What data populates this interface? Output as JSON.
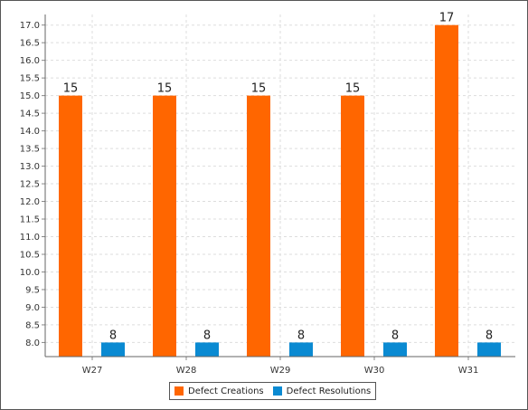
{
  "chart_data": {
    "type": "bar",
    "title": "",
    "xlabel": "",
    "ylabel": "",
    "categories": [
      "W27",
      "W28",
      "W29",
      "W30",
      "W31"
    ],
    "series": [
      {
        "name": "Defect Creations",
        "values": [
          15,
          15,
          15,
          15,
          17
        ],
        "color": "#ff6600"
      },
      {
        "name": "Defect Resolutions",
        "values": [
          8,
          8,
          8,
          8,
          8
        ],
        "color": "#0a8ad2"
      }
    ],
    "ylim": [
      7.6,
      17.3
    ],
    "yticks": [
      "8.0",
      "8.5",
      "9.0",
      "9.5",
      "10.0",
      "10.5",
      "11.0",
      "11.5",
      "12.0",
      "12.5",
      "13.0",
      "13.5",
      "14.0",
      "14.5",
      "15.0",
      "15.5",
      "16.0",
      "16.5",
      "17.0"
    ],
    "grid": true,
    "data_labels": true,
    "legend_position": "bottom-center"
  }
}
